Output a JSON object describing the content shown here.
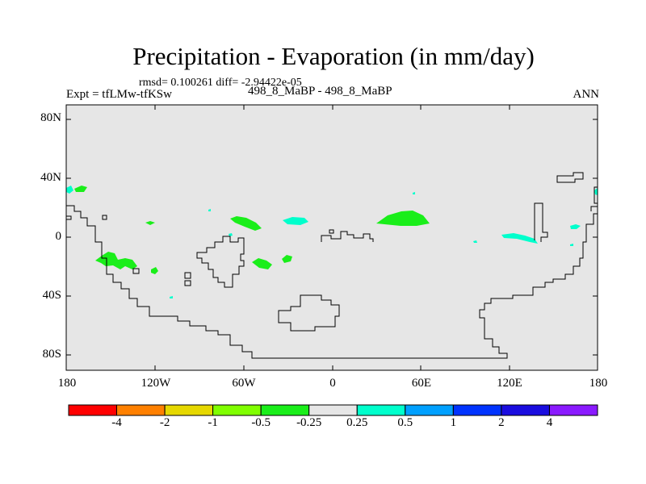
{
  "title": "Precipitation - Evaporation (in mm/day)",
  "stats": "rmsd= 0.100261 diff= -2.94422e-05",
  "experiment": "Expt = tfLMw-tfKSw",
  "subtitle": "498_8_MaBP - 498_8_MaBP",
  "season": "ANN",
  "map": {
    "background": "#e6e6e6",
    "lat_labels": [
      "80N",
      "40N",
      "0",
      "40S",
      "80S"
    ],
    "lon_labels": [
      "180",
      "120W",
      "60W",
      "0",
      "60E",
      "120E",
      "180"
    ],
    "lat_range": [
      -90,
      90
    ],
    "lon_range": [
      -180,
      180
    ]
  },
  "colorbar": {
    "labels": [
      "-4",
      "-2",
      "-1",
      "-0.5",
      "-0.25",
      "0.25",
      "0.5",
      "1",
      "2",
      "4"
    ],
    "colors": [
      "#ff0000",
      "#ff8000",
      "#e6d800",
      "#80ff00",
      "#1aee1a",
      "#e6e6e6",
      "#00ffcc",
      "#00a0ff",
      "#0033ff",
      "#1a0ddf",
      "#8a1aff"
    ]
  },
  "chart_data": {
    "type": "heatmap",
    "title": "Precipitation - Evaporation (in mm/day)",
    "field": "P-E difference tfLMw minus tfKSw, annual mean",
    "units": "mm/day",
    "levels": [
      -4,
      -2,
      -1,
      -0.5,
      -0.25,
      0.25,
      0.5,
      1,
      2,
      4
    ],
    "xlabel": "",
    "ylabel": "",
    "xlim": [
      -180,
      180
    ],
    "ylim": [
      -90,
      90
    ],
    "regions": [
      {
        "name": "equatorial-east-hemisphere-green",
        "lon": 52,
        "lat": 13,
        "sign": "negative",
        "class": "-0.5 to -0.25"
      },
      {
        "name": "central-atlantic-green",
        "lon": -58,
        "lat": 9,
        "sign": "negative",
        "class": "-0.5 to -0.25"
      },
      {
        "name": "south-pacific-green",
        "lon": -143,
        "lat": -17,
        "sign": "negative",
        "class": "-0.5 to -0.25"
      },
      {
        "name": "south-atlantic-green",
        "lon": -47,
        "lat": -18,
        "sign": "negative",
        "class": "-0.5 to -0.25"
      },
      {
        "name": "equatorial-cyan",
        "lon": -24,
        "lat": 11,
        "sign": "positive",
        "class": "0.25 to 0.5"
      },
      {
        "name": "west-pacific-cyan",
        "lon": 140,
        "lat": 1,
        "sign": "positive",
        "class": "0.25 to 0.5"
      }
    ]
  }
}
